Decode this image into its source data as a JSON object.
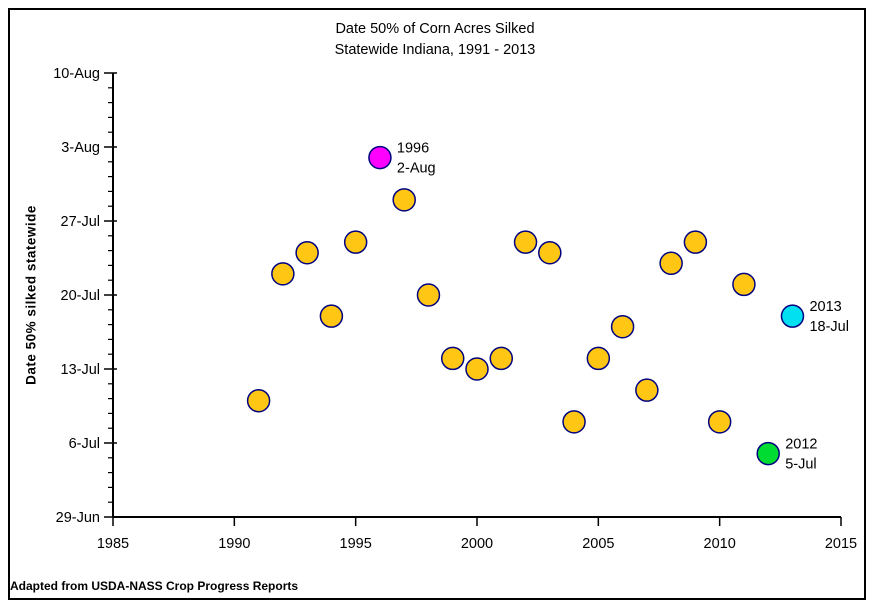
{
  "chart_data": {
    "type": "scatter",
    "title_line1": "Date 50% of Corn Acres Silked",
    "title_line2": "Statewide Indiana, 1991 - 2013",
    "ylabel": "Date 50% silked statewide",
    "xlim": [
      1985,
      2015
    ],
    "x_ticks": [
      "1985",
      "1990",
      "1995",
      "2000",
      "2005",
      "2010",
      "2015"
    ],
    "y_ticks": [
      {
        "label": "10-Aug",
        "day": 42
      },
      {
        "label": "3-Aug",
        "day": 35
      },
      {
        "label": "27-Jul",
        "day": 28
      },
      {
        "label": "20-Jul",
        "day": 21
      },
      {
        "label": "13-Jul",
        "day": 14
      },
      {
        "label": "6-Jul",
        "day": 7
      },
      {
        "label": "29-Jun",
        "day": 0
      }
    ],
    "ylim_days": [
      0,
      42
    ],
    "y_minor_intervals_per_major": 5,
    "grid": "off",
    "legend": "none",
    "points": [
      {
        "year": 1991,
        "date": "10-Jul",
        "day": 11
      },
      {
        "year": 1992,
        "date": "22-Jul",
        "day": 23
      },
      {
        "year": 1993,
        "date": "24-Jul",
        "day": 25
      },
      {
        "year": 1994,
        "date": "18-Jul",
        "day": 19
      },
      {
        "year": 1995,
        "date": "25-Jul",
        "day": 26
      },
      {
        "year": 1996,
        "date": "2-Aug",
        "day": 34,
        "color": "#FF00FF"
      },
      {
        "year": 1997,
        "date": "29-Jul",
        "day": 30
      },
      {
        "year": 1998,
        "date": "20-Jul",
        "day": 21
      },
      {
        "year": 1999,
        "date": "14-Jul",
        "day": 15
      },
      {
        "year": 2000,
        "date": "13-Jul",
        "day": 14
      },
      {
        "year": 2001,
        "date": "14-Jul",
        "day": 15
      },
      {
        "year": 2002,
        "date": "25-Jul",
        "day": 26
      },
      {
        "year": 2003,
        "date": "24-Jul",
        "day": 25
      },
      {
        "year": 2004,
        "date": "8-Jul",
        "day": 9
      },
      {
        "year": 2005,
        "date": "14-Jul",
        "day": 15
      },
      {
        "year": 2006,
        "date": "17-Jul",
        "day": 18
      },
      {
        "year": 2007,
        "date": "11-Jul",
        "day": 12
      },
      {
        "year": 2008,
        "date": "23-Jul",
        "day": 24
      },
      {
        "year": 2009,
        "date": "25-Jul",
        "day": 26
      },
      {
        "year": 2010,
        "date": "8-Jul",
        "day": 9
      },
      {
        "year": 2011,
        "date": "21-Jul",
        "day": 22
      },
      {
        "year": 2012,
        "date": "5-Jul",
        "day": 6,
        "color": "#00DC32"
      },
      {
        "year": 2013,
        "date": "18-Jul",
        "day": 19,
        "color": "#00E0F0"
      }
    ],
    "colors": {
      "default_marker": "#FFC713",
      "marker_border": "#000080",
      "axis": "#000000"
    },
    "annotations": [
      {
        "year": 1996,
        "line1": "1996",
        "line2": "2-Aug"
      },
      {
        "year": 2013,
        "line1": "2013",
        "line2": "18-Jul"
      },
      {
        "year": 2012,
        "line1": "2012",
        "line2": "5-Jul"
      }
    ]
  },
  "footer": {
    "credit": "Adapted from USDA-NASS Crop Progress Reports"
  }
}
